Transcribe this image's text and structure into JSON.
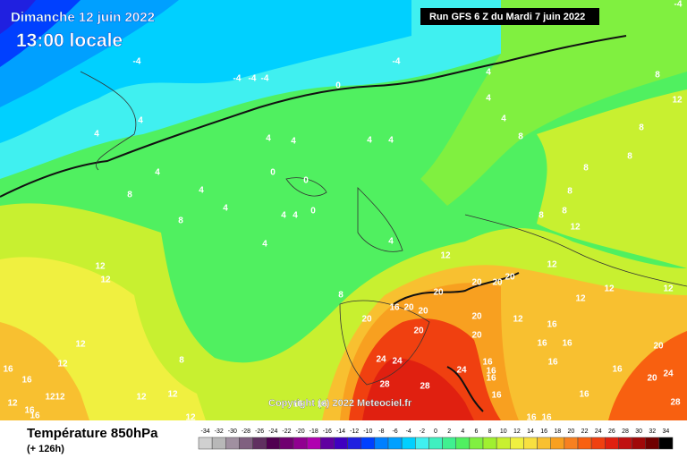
{
  "header": {
    "date": "Dimanche 12 juin 2022",
    "time": "13:00 locale",
    "run": "Run GFS 6 Z du Mardi 7 juin 2022"
  },
  "copyright": "Copyright (c) 2022 Meteociel.fr",
  "footer": {
    "title": "Température 850hPa",
    "lead": "(+ 126h)"
  },
  "legend": {
    "ticks": [
      -34,
      -32,
      -30,
      -28,
      -26,
      -24,
      -22,
      -20,
      -18,
      -16,
      -14,
      -12,
      -10,
      -8,
      -6,
      -4,
      -2,
      0,
      2,
      4,
      6,
      8,
      10,
      12,
      14,
      16,
      18,
      20,
      22,
      24,
      26,
      28,
      30,
      32,
      34
    ],
    "colors": [
      "#d0d0d0",
      "#b8b8b8",
      "#a090a0",
      "#806080",
      "#603060",
      "#500050",
      "#700070",
      "#900090",
      "#b000b0",
      "#6000a0",
      "#4000c0",
      "#2020e0",
      "#0040ff",
      "#0080ff",
      "#00a0ff",
      "#00d0ff",
      "#40f0f0",
      "#40f0c0",
      "#40f090",
      "#50f060",
      "#80f040",
      "#a0f030",
      "#c8f030",
      "#f0f040",
      "#f8e040",
      "#f8c030",
      "#f8a020",
      "#f88020",
      "#f86010",
      "#f04010",
      "#e02010",
      "#c01010",
      "#a00808",
      "#700000",
      "#000000"
    ]
  },
  "contour_labels": [
    -4,
    -4,
    -4,
    -4,
    -4,
    0,
    4,
    4,
    4,
    4,
    4,
    4,
    4,
    4,
    4,
    8,
    0,
    0,
    4,
    4,
    8,
    4,
    4,
    4,
    0,
    8,
    4,
    4,
    12,
    12,
    12,
    8,
    20,
    20,
    20,
    20,
    12,
    12,
    12,
    12,
    16,
    20,
    20,
    20,
    20,
    12,
    20,
    20,
    12,
    8,
    16,
    16,
    16,
    20,
    24,
    24,
    24,
    16,
    16,
    16,
    16,
    12,
    16,
    16,
    20,
    24,
    16,
    28,
    28,
    12,
    12,
    12,
    12,
    12,
    16,
    16,
    16,
    16,
    28,
    16,
    16,
    12,
    16,
    16,
    -4,
    8,
    8,
    8,
    8,
    8,
    8,
    12,
    8,
    12
  ]
}
